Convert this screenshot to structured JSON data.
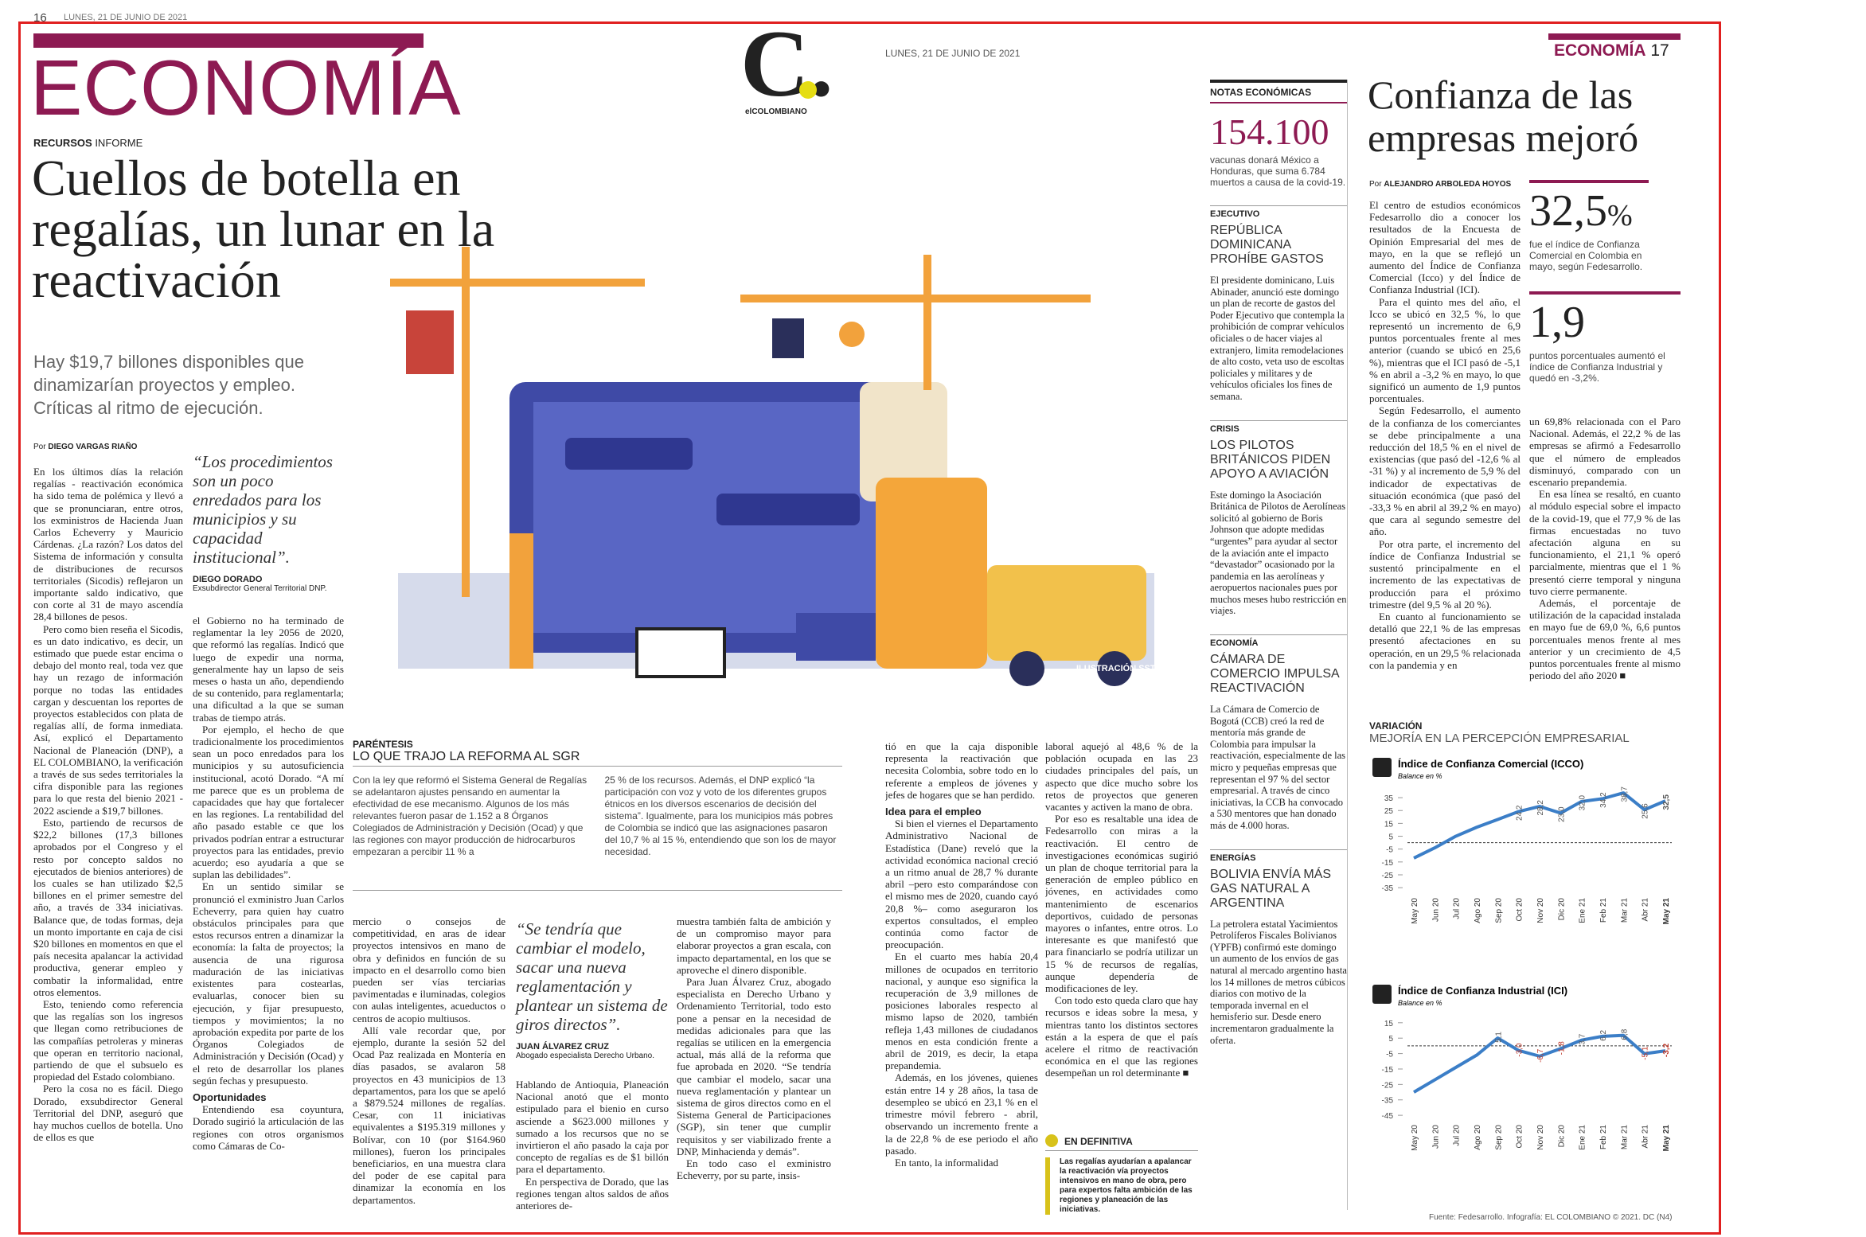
{
  "left_page": {
    "folio": "16",
    "date_line": "LUNES, 21 DE JUNIO DE 2021",
    "section": "ECONOMÍA",
    "kicker": "RECURSOS",
    "kicker_type": "INFORME",
    "headline": "Cuellos de botella en regalías, un lunar en la reactivación",
    "subhead": "Hay $19,7 billones disponibles que dinamizarían proyectos y empleo. Críticas al ritmo de ejecución.",
    "byline_prefix": "Por",
    "byline": "DIEGO VARGAS RIAÑO",
    "quote1": {
      "text": "“Los procedimientos son un poco enredados para los municipios y su capacidad institucional”.",
      "author": "DIEGO DORADO",
      "role": "Exsubdirector General Territorial DNP."
    },
    "illustration_credit": "ILUSTRACIÓN SSTOCK",
    "col1": [
      "En los últimos días la relación regalías - reactivación económica ha sido tema de polémica y llevó a que se pronunciaran, entre otros, los exministros de Hacienda Juan Carlos Echeverry y Mauricio Cárdenas. ¿La razón? Los datos del Sistema de información y consulta de distribuciones de recursos territoriales (Sicodis) reflejaron un importante saldo indicativo, que con corte al 31 de mayo ascendía 28,4 billones de pesos.",
      "Pero como bien reseña el Sicodis, es un dato indicativo, es decir, un estimado que puede estar encima o debajo del monto real, toda vez que hay un rezago de información porque no todas las entidades cargan y descuentan los reportes de proyectos establecidos con plata de regalías allí, de forma inmediata. Así, explicó el Departamento Nacional de Planeación (DNP), a EL COLOMBIANO, la verificación a través de sus sedes territoriales la cifra disponible para las regiones para lo que resta del bienio 2021 - 2022 asciende a $19,7 billones.",
      "Esto, partiendo de recursos de $22,2 billones (17,3 billones aprobados por el Congreso y el resto por concepto saldos no ejecutados de bienios anteriores) de los cuales se han utilizado $2,5 billones en el primer semestre del año, a través de 334 iniciativas. Balance que, de todas formas, deja un monto importante en caja de cisi $20 billones en momentos en que el país necesita apalancar la actividad productiva, generar empleo y combatir la informalidad, entre otros elementos.",
      "Esto, teniendo como referencia que las regalías son los ingresos que llegan como retribuciones de las compañías petroleras y mineras que operan en territorio nacional, partiendo de que el subsuelo es propiedad del Estado colombiano.",
      "Pero la cosa no es fácil. Diego Dorado, exsubdirector General Territorial del DNP, aseguró que hay muchos cuellos de botella. Uno de ellos es que"
    ],
    "col2": [
      "el Gobierno no ha terminado de reglamentar la ley 2056 de 2020, que reformó las regalías. Indicó que luego de expedir una norma, generalmente hay un lapso de seis meses o hasta un año, dependiendo de su contenido, para reglamentarla; una dificultad a la que se suman trabas de tiempo atrás.",
      "Por ejemplo, el hecho de que tradicionalmente los procedimientos sean un poco enredados para los municipios y su autosuficiencia institucional, acotó Dorado. “A mí me parece que es un problema de capacidades que hay que fortalecer en las regiones. La rentabilidad del año pasado estable ce que los privados podrían entrar a estructurar proyectos para las entidades, previo acuerdo; eso ayudaría a que se suplan las debilidades”.",
      "En un sentido similar se pronunció el exministro Juan Carlos Echeverry, para quien hay cuatro obstáculos principales para que estos recursos entren a dinamizar la economía: la falta de proyectos; la ausencia de una rigurosa maduración de las iniciativas existentes para costearlas, evaluarlas, conocer bien su ejecución, y fijar presupuesto, tiempos y movimientos; la no aprobación expedita por parte de los Órganos Colegiados de Administración y Decisión (Ocad) y el reto de desarrollar los planes según fechas y presupuesto.",
      "Oportunidades",
      "Entendiendo esa coyuntura, Dorado sugirió la articulación de las regiones con otros organismos como Cámaras de Co-"
    ],
    "box": {
      "tag": "PARÉNTESIS",
      "title": "LO QUE TRAJO LA REFORMA AL SGR",
      "text1": "Con la ley que reformó el Sistema General de Regalías se adelantaron ajustes pensando en aumentar la efectividad de ese mecanismo. Algunos de los más relevantes fueron pasar de 1.152 a 8 Órganos Colegiados de Administración y Decisión (Ocad) y que las regiones con mayor producción de hidrocarburos empezaran a percibir 11 % a",
      "text2": "25 % de los recursos. Además, el DNP explicó “la participación con voz y voto de los diferentes grupos étnicos en los diversos escenarios de decisión del sistema”. Igualmente, para los municipios más pobres de Colombia se indicó que las asignaciones pasaron del 10,7 % al 15 %, entendiendo que son los de mayor necesidad."
    },
    "col3": [
      "mercio o consejos de competitividad, en aras de idear proyectos intensivos en mano de obra y definidos en función de su impacto en el desarrollo como bien pueden ser vías terciarias pavimentadas e iluminadas, colegios con aulas inteligentes, acueductos o centros de acopio multiusos.",
      "Allí vale recordar que, por ejemplo, durante la sesión 52 del Ocad Paz realizada en Montería en días pasados, se avalaron 58 proyectos en 43 municipios de 13 departamentos, para los que se apeló a $879.524 millones de regalías. Cesar, con 11 iniciativas equivalentes a $195.319 millones y Bolívar, con 10 (por $164.960 millones), fueron los principales beneficiarios, en una muestra clara del poder de ese capital para dinamizar la economía en los departamentos."
    ],
    "quote2": {
      "text": "“Se tendría que cambiar el modelo, sacar una nueva reglamentación y plantear un sistema de giros directos”.",
      "author": "JUAN ÁLVAREZ CRUZ",
      "role": "Abogado especialista Derecho Urbano."
    },
    "col4": [
      "Hablando de Antioquia, Planeación Nacional anotó que el monto estipulado para el bienio en curso asciende a $623.000 millones y sumado a los recursos que no se invirtieron el año pasado la caja por concepto de regalías es de $1 billón para el departamento.",
      "En perspectiva de Dorado, que las regiones tengan altos saldos de años anteriores de-"
    ],
    "col5": [
      "muestra también falta de ambición y de un compromiso mayor para elaborar proyectos a gran escala, con impacto departamental, en los que se aproveche el dinero disponible.",
      "Para Juan Álvarez Cruz, abogado especialista en Derecho Urbano y Ordenamiento Territorial, todo esto pone a pensar en la necesidad de medidas adicionales para que las regalías se utilicen en la emergencia actual, más allá de la reforma que fue aprobada en 2020. “Se tendría que cambiar el modelo, sacar una nueva reglamentación y plantear un sistema de giros directos como en el Sistema General de Participaciones (SGP), sin tener que cumplir requisitos y ser viabilizado frente a DNP, Minhacienda y demás”.",
      "En todo caso el exministro Echeverry, por su parte, insis-"
    ],
    "col6": [
      "tió en que la caja disponible representa la reactivación que necesita Colombia, sobre todo en lo referente a empleos de jóvenes y jefes de hogares que se han perdido.",
      "Idea para el empleo",
      "Si bien el viernes el Departamento Administrativo Nacional de Estadística (Dane) reveló que la actividad económica nacional creció a un ritmo anual de 28,7 % durante abril –pero esto comparándose con el mismo mes de 2020, cuando cayó 20,8 %– como aseguraron los expertos consultados, el empleo continúa como factor de preocupación.",
      "En el cuarto mes había 20,4 millones de ocupados en territorio nacional, y aunque eso significa la recuperación de 3,9 millones de posiciones laborales respecto al mismo lapso de 2020, también refleja 1,43 millones de ciudadanos menos en esta condición frente a abril de 2019, es decir, la etapa prepandemia.",
      "Además, en los jóvenes, quienes están entre 14 y 28 años, la tasa de desempleo se ubicó en 23,1 % en el trimestre móvil febrero - abril, observando un incremento frente a la de 22,8 % de ese periodo el año pasado.",
      "En tanto, la informalidad"
    ],
    "col7": [
      "laboral aquejó al 48,6 % de la población ocupada en las 23 ciudades principales del país, un aspecto que dice mucho sobre los retos de proyectos que generen vacantes y activen la mano de obra.",
      "Por eso es resaltable una idea de Fedesarrollo con miras a la reactivación. El centro de investigaciones económicas sugirió un plan de choque territorial para la generación de empleo público en jóvenes, en actividades como mantenimiento de escenarios deportivos, cuidado de personas mayores o infantes, entre otros. Lo interesante es que manifestó que para financiarlo se podría utilizar un 15 % de recursos de regalías, aunque dependería de modificaciones de ley.",
      "Con todo esto queda claro que hay recursos e ideas sobre la mesa, y mientras tanto los distintos sectores están a la espera de que el país acelere el ritmo de reactivación económica en el que las regiones desempeñan un rol determinante ■"
    ],
    "summary": {
      "tag": "EN DEFINITIVA",
      "text": "Las regalías ayudarían a apalancar la reactivación vía proyectos intensivos en mano de obra, pero para expertos falta ambición de las regiones y planeación de las iniciativas."
    }
  },
  "masthead": {
    "logo": "C.",
    "name": "elCOLOMBIANO",
    "date": "LUNES, 21 DE JUNIO DE 2021"
  },
  "notes": {
    "title": "NOTAS ECONÓMICAS",
    "big_number": "154.100",
    "big_text": "vacunas donará México a Honduras, que suma 6.784 muertos a causa de la covid-19.",
    "items": [
      {
        "tag": "EJECUTIVO",
        "title": "REPÚBLICA DOMINICANA PROHÍBE GASTOS",
        "text": "El presidente dominicano, Luis Abinader, anunció este domingo un plan de recorte de gastos del Poder Ejecutivo que contempla la prohibición de comprar vehículos oficiales o de hacer viajes al extranjero, limita remodelaciones de alto costo, veta uso de escoltas policiales y militares y de vehículos oficiales los fines de semana."
      },
      {
        "tag": "CRISIS",
        "title": "LOS PILOTOS BRITÁNICOS PIDEN APOYO A AVIACIÓN",
        "text": "Este domingo la Asociación Británica de Pilotos de Aerolíneas solicitó al gobierno de Boris Johnson que adopte medidas “urgentes” para ayudar al sector de la aviación ante el impacto “devastador” ocasionado por la pandemia en las aerolíneas y aeropuertos nacionales pues por muchos meses hubo restricción en viajes."
      },
      {
        "tag": "ECONOMÍA",
        "title": "CÁMARA DE COMERCIO IMPULSA REACTIVACIÓN",
        "text": "La Cámara de Comercio de Bogotá (CCB) creó la red de mentoría más grande de Colombia para impulsar la reactivación, especialmente de las micro y pequeñas empresas que representan el 97 % del sector empresarial. A través de cinco iniciativas, la CCB ha convocado a 530 mentores que han donado más de 4.000 horas."
      },
      {
        "tag": "ENERGÍAS",
        "title": "BOLIVIA ENVÍA MÁS GAS NATURAL A ARGENTINA",
        "text": "La petrolera estatal Yacimientos Petrolíferos Fiscales Bolivianos (YPFB) confirmó este domingo un aumento de los envíos de gas natural al mercado argentino hasta los 14 millones de metros cúbicos diarios con motivo de la temporada invernal en el hemisferio sur. Desde enero incrementaron gradualmente la oferta."
      }
    ]
  },
  "right_page": {
    "section": "ECONOMÍA",
    "folio": "17",
    "headline": "Confianza de las empresas mejoró",
    "byline_prefix": "Por",
    "byline": "ALEJANDRO ARBOLEDA HOYOS",
    "stats": [
      {
        "number": "32,5",
        "unit": "%",
        "text": "fue el índice de Confianza Comercial en Colombia en mayo, según Fedesarrollo."
      },
      {
        "number": "1,9",
        "unit": "",
        "text": "puntos porcentuales aumentó el índice de Confianza Industrial y quedó en -3,2%."
      }
    ],
    "colA": [
      "El centro de estudios económicos Fedesarrollo dio a conocer los resultados de la Encuesta de Opinión Empresarial del mes de mayo, en la que se reflejó un aumento del Índice de Confianza Comercial (Icco) y del Índice de Confianza Industrial (ICI).",
      "Para el quinto mes del año, el Icco se ubicó en 32,5 %, lo que representó un incremento de 6,9 puntos porcentuales frente al mes anterior (cuando se ubicó en 25,6 %), mientras que el ICI pasó de -5,1 % en abril a -3,2 % en mayo, lo que significó un aumento de 1,9 puntos porcentuales.",
      "Según Fedesarrollo, el aumento de la confianza de los comerciantes se debe principalmente a una reducción del 18,5 % en el nivel de existencias (que pasó del -12,6 % al -31 %) y al incremento de 5,9 % del indicador de expectativas de situación económica (que pasó del -33,3 % en abril al 39,2 % en mayo) que cara al segundo semestre del año.",
      "Por otra parte, el incremento del índice de Confianza Industrial se sustentó principalmente en el incremento de las expectativas de producción para el próximo trimestre (del 9,5 % al 20 %).",
      "En cuanto al funcionamiento se detalló que 22,1 % de las empresas presentó afectaciones en su operación, en un 29,5 % relacionada con la pandemia y en"
    ],
    "colB": [
      "un 69,8% relacionada con el Paro Nacional. Además, el 22,2 % de las empresas se afirmó a Fedesarrollo que el número de empleados disminuyó, comparado con un escenario prepandemia.",
      "En esa línea se resaltó, en cuanto al módulo especial sobre el impacto de la covid-19, que el 77,9 % de las firmas encuestadas no tuvo afectación alguna en su funcionamiento, el 21,1 % operó parcialmente, mientras que el 1 % presentó cierre temporal y ninguna tuvo cierre permanente.",
      "Además, el porcentaje de utilización de la capacidad instalada en mayo fue de 69,0 %, 6,6 puntos porcentuales menos frente al mes anterior y un crecimiento de 4,5 puntos porcentuales frente al mismo periodo del año 2020 ■"
    ],
    "graphic": {
      "tag": "VARIACIÓN",
      "title": "MEJORÍA EN LA PERCEPCIÓN EMPRESARIAL",
      "source": "Fuente: Fedesarrollo. Infografía: EL COLOMBIANO © 2021. DC (N4)",
      "charts": [
        {
          "type": "line",
          "title": "Índice de Confianza Comercial (ICCO)",
          "subtitle": "Balance en %",
          "color": "#3b7ec7",
          "categories": [
            "May 20",
            "Jun 20",
            "Jul 20",
            "Ago 20",
            "Sep 20",
            "Oct 20",
            "Nov 20",
            "Dic 20",
            "Ene 21",
            "Feb 21",
            "Mar 21",
            "Abr 21",
            "May 21"
          ],
          "values": [
            -12,
            -4,
            5,
            12,
            18,
            24.2,
            28.2,
            23.0,
            32.0,
            34.2,
            38.7,
            25.6,
            32.5
          ],
          "value_labels": [
            null,
            null,
            null,
            null,
            null,
            "24,2",
            "28,2",
            "23,0",
            "32,0",
            "34,2",
            "38,7",
            "25,6",
            "32,5"
          ],
          "ylim": [
            -38,
            40
          ],
          "yticks": [
            35,
            25,
            15,
            5,
            -5,
            -15,
            -25,
            -35
          ]
        },
        {
          "type": "line",
          "title": "Índice de Confianza Industrial (ICI)",
          "subtitle": "Balance en %",
          "color": "#3b7ec7",
          "categories": [
            "May 20",
            "Jun 20",
            "Jul 20",
            "Ago 20",
            "Sep 20",
            "Oct 20",
            "Nov 20",
            "Dic 20",
            "Ene 21",
            "Feb 21",
            "Mar 21",
            "Abr 21",
            "May 21"
          ],
          "values": [
            -30,
            -22,
            -14,
            -6,
            5.1,
            -3.0,
            -6.7,
            -1.8,
            3.7,
            6.2,
            6.8,
            -5.1,
            -3.2
          ],
          "value_labels": [
            null,
            null,
            null,
            null,
            "5,1",
            "-3,0",
            "-6,7",
            "-1,8",
            "3,7",
            "6,2",
            "6,8",
            "-5,1",
            "-3,2"
          ],
          "ylim": [
            -47,
            18
          ],
          "yticks": [
            15,
            5,
            -5,
            -15,
            -25,
            -35,
            -45
          ]
        }
      ]
    }
  }
}
